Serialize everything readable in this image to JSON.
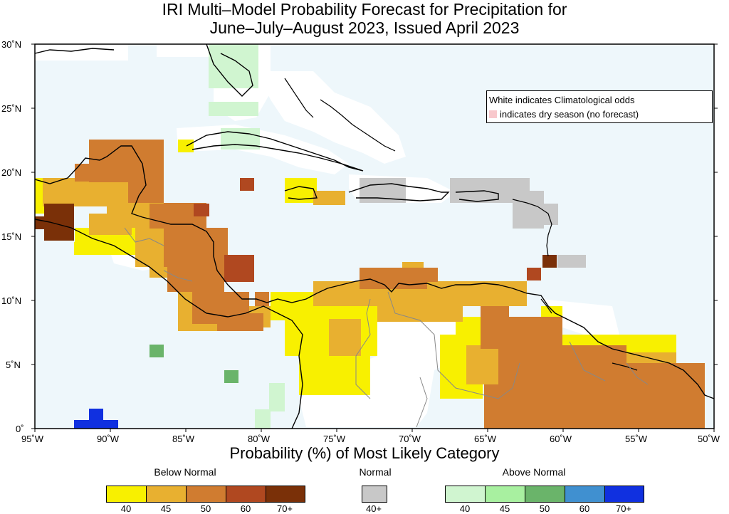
{
  "title_line1": "IRI Multi–Model Probability Forecast for Precipitation for",
  "title_line2": "June–July–August 2023, Issued April 2023",
  "note_line1": "White indicates Climatological odds",
  "note_line2": "indicates dry season (no forecast)",
  "x_axis_title": "Probability (%) of Most Likely Category",
  "lat_labels": [
    "30˚N",
    "25˚N",
    "20˚N",
    "15˚N",
    "10˚N",
    "5˚N",
    "0˚"
  ],
  "lon_labels": [
    "95˚W",
    "90˚W",
    "85˚W",
    "80˚W",
    "75˚W",
    "70˚W",
    "65˚W",
    "60˚W",
    "55˚W",
    "50˚W"
  ],
  "legend": {
    "below": {
      "label": "Below Normal",
      "ticks": [
        "40",
        "45",
        "50",
        "60",
        "70+"
      ],
      "colors": [
        "#f8f000",
        "#e8b030",
        "#d07c30",
        "#b04820",
        "#7a3008"
      ]
    },
    "normal": {
      "label": "Normal",
      "ticks": [
        "40+"
      ],
      "colors": [
        "#c8c8c8"
      ]
    },
    "above": {
      "label": "Above Normal",
      "ticks": [
        "40",
        "45",
        "50",
        "60",
        "70+"
      ],
      "colors": [
        "#d0f5d0",
        "#a8f0a0",
        "#6ab46a",
        "#4090d0",
        "#1030e0"
      ]
    }
  },
  "colors": {
    "ocean": "#eef7fb",
    "land_clim": "#ffffff",
    "coast": "#000000",
    "borders": "#888888",
    "dry_season": "#f8c8cc"
  }
}
